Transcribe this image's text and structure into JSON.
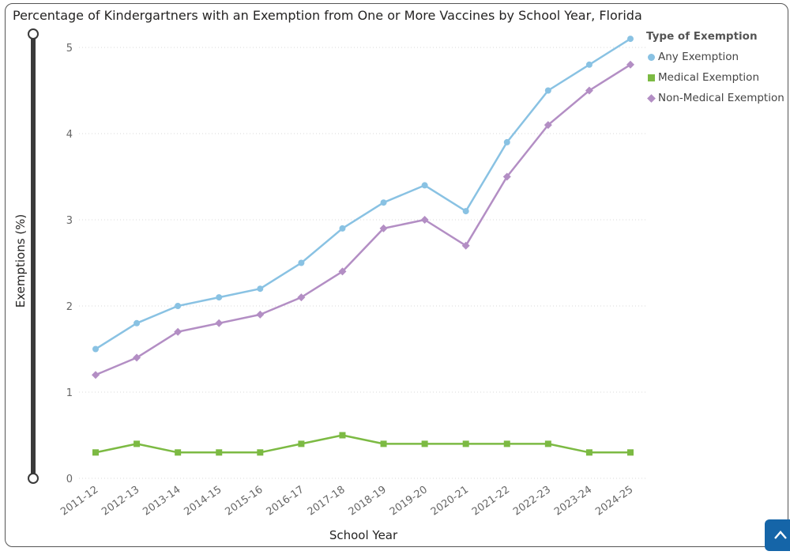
{
  "page": {
    "title": "Percentage of Kindergartners with an Exemption from One or More Vaccines by School Year, Florida"
  },
  "chart_data": {
    "type": "line",
    "title": "Percentage of Kindergartners with an Exemption from One or More Vaccines by School Year, Florida",
    "xlabel": "School Year",
    "ylabel": "Exemptions (%)",
    "ylim": [
      0,
      5.1
    ],
    "yticks": [
      0,
      1,
      2,
      3,
      4,
      5
    ],
    "grid": "horizontal dotted",
    "legend_title": "Type of Exemption",
    "legend_placement": "top-right",
    "categories": [
      "2011-12",
      "2012-13",
      "2013-14",
      "2014-15",
      "2015-16",
      "2016-17",
      "2017-18",
      "2018-19",
      "2019-20",
      "2020-21",
      "2021-22",
      "2022-23",
      "2023-24",
      "2024-25"
    ],
    "series": [
      {
        "name": "Any Exemption",
        "color": "#89c2e3",
        "marker": "circle",
        "values": [
          1.5,
          1.8,
          2.0,
          2.1,
          2.2,
          2.5,
          2.9,
          3.2,
          3.4,
          3.1,
          3.9,
          4.5,
          4.8,
          5.1
        ]
      },
      {
        "name": "Medical Exemption",
        "color": "#7cba43",
        "marker": "square",
        "values": [
          0.3,
          0.4,
          0.3,
          0.3,
          0.3,
          0.4,
          0.5,
          0.4,
          0.4,
          0.4,
          0.4,
          0.4,
          0.3,
          0.3
        ]
      },
      {
        "name": "Non-Medical Exemption",
        "color": "#b38ec4",
        "marker": "diamond",
        "values": [
          1.2,
          1.4,
          1.7,
          1.8,
          1.9,
          2.1,
          2.4,
          2.9,
          3.0,
          2.7,
          3.5,
          4.1,
          4.5,
          4.8
        ]
      }
    ]
  },
  "ui": {
    "scroll_top_icon": "chevron-up-icon",
    "scroll_top_color": "#1565a8",
    "slider_color": "#3a3a3a"
  }
}
